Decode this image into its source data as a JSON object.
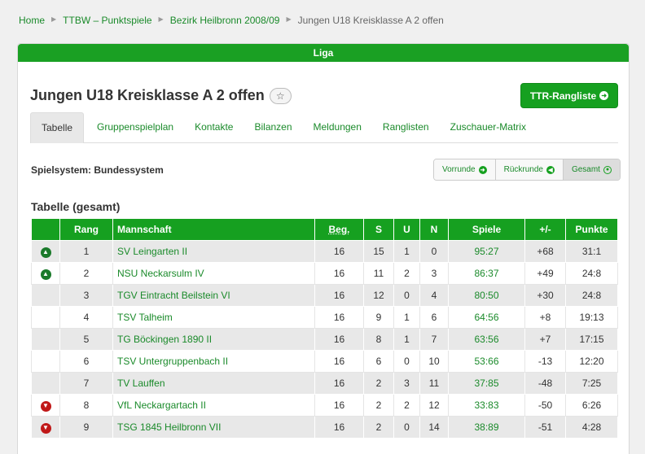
{
  "breadcrumb": {
    "items": [
      "Home",
      "TTBW – Punktspiele",
      "Bezirk Heilbronn 2008/09"
    ],
    "current": "Jungen U18 Kreisklasse A 2 offen"
  },
  "panel": {
    "header": "Liga"
  },
  "page": {
    "title": "Jungen U18 Kreisklasse A 2 offen",
    "ttr_button": "TTR-Rangliste",
    "tabs": [
      "Tabelle",
      "Gruppenspielplan",
      "Kontakte",
      "Bilanzen",
      "Meldungen",
      "Ranglisten",
      "Zuschauer-Matrix"
    ],
    "active_tab": "Tabelle",
    "spielsystem": "Spielsystem: Bundessystem",
    "round_buttons": [
      "Vorrunde",
      "Rückrunde",
      "Gesamt"
    ],
    "section_title": "Tabelle (gesamt)"
  },
  "table": {
    "headers": [
      "",
      "Rang",
      "Mannschaft",
      "Beg.",
      "S",
      "U",
      "N",
      "Spiele",
      "+/-",
      "Punkte"
    ],
    "rows": [
      {
        "indicator": "up",
        "rang": "1",
        "team": "SV Leingarten II",
        "beg": "16",
        "s": "15",
        "u": "1",
        "n": "0",
        "spiele": "95:27",
        "diff": "+68",
        "punkte": "31:1"
      },
      {
        "indicator": "up",
        "rang": "2",
        "team": "NSU Neckarsulm IV",
        "beg": "16",
        "s": "11",
        "u": "2",
        "n": "3",
        "spiele": "86:37",
        "diff": "+49",
        "punkte": "24:8"
      },
      {
        "indicator": "",
        "rang": "3",
        "team": "TGV Eintracht Beilstein VI",
        "beg": "16",
        "s": "12",
        "u": "0",
        "n": "4",
        "spiele": "80:50",
        "diff": "+30",
        "punkte": "24:8"
      },
      {
        "indicator": "",
        "rang": "4",
        "team": "TSV Talheim",
        "beg": "16",
        "s": "9",
        "u": "1",
        "n": "6",
        "spiele": "64:56",
        "diff": "+8",
        "punkte": "19:13"
      },
      {
        "indicator": "",
        "rang": "5",
        "team": "TG Böckingen 1890 II",
        "beg": "16",
        "s": "8",
        "u": "1",
        "n": "7",
        "spiele": "63:56",
        "diff": "+7",
        "punkte": "17:15"
      },
      {
        "indicator": "",
        "rang": "6",
        "team": "TSV Untergruppenbach II",
        "beg": "16",
        "s": "6",
        "u": "0",
        "n": "10",
        "spiele": "53:66",
        "diff": "-13",
        "punkte": "12:20"
      },
      {
        "indicator": "",
        "rang": "7",
        "team": "TV Lauffen",
        "beg": "16",
        "s": "2",
        "u": "3",
        "n": "11",
        "spiele": "37:85",
        "diff": "-48",
        "punkte": "7:25"
      },
      {
        "indicator": "down",
        "rang": "8",
        "team": "VfL Neckargartach II",
        "beg": "16",
        "s": "2",
        "u": "2",
        "n": "12",
        "spiele": "33:83",
        "diff": "-50",
        "punkte": "6:26"
      },
      {
        "indicator": "down",
        "rang": "9",
        "team": "TSG 1845 Heilbronn VII",
        "beg": "16",
        "s": "2",
        "u": "0",
        "n": "14",
        "spiele": "38:89",
        "diff": "-51",
        "punkte": "4:28"
      }
    ]
  },
  "colors": {
    "accent": "#16a020",
    "link": "#1a8a2a",
    "down": "#c01818",
    "up": "#1a7a2a"
  }
}
